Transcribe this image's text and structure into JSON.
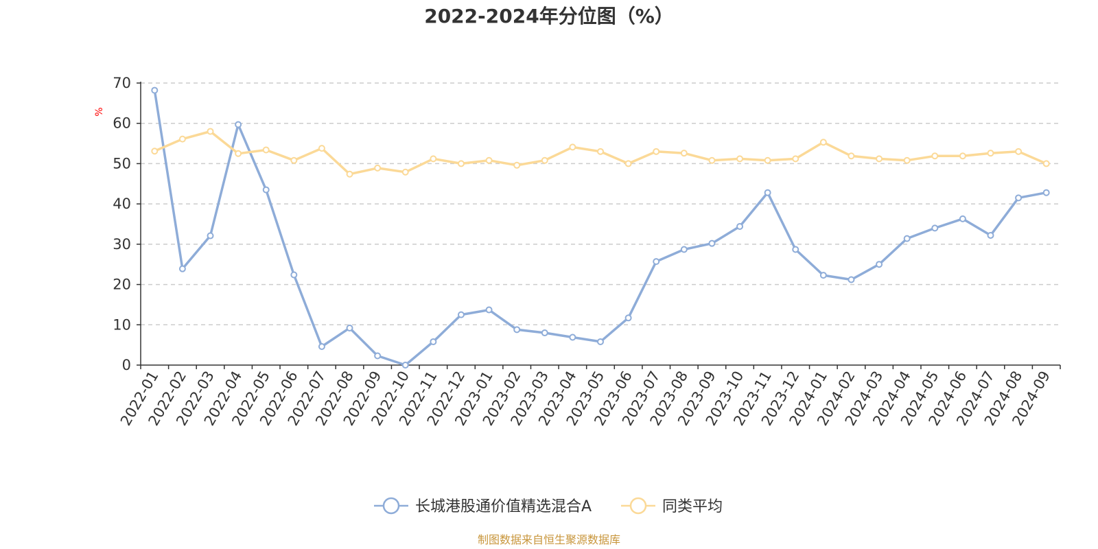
{
  "chart_data": {
    "type": "line",
    "title": "2022-2024年分位图（%）",
    "ylabel": "%",
    "xlabel": "",
    "ylim": [
      0,
      70
    ],
    "yticks": [
      0,
      10,
      20,
      30,
      40,
      50,
      60,
      70
    ],
    "grid": true,
    "legend_position": "bottom",
    "categories": [
      "2022-01",
      "2022-02",
      "2022-03",
      "2022-04",
      "2022-05",
      "2022-06",
      "2022-07",
      "2022-08",
      "2022-09",
      "2022-10",
      "2022-11",
      "2022-12",
      "2023-01",
      "2023-02",
      "2023-03",
      "2023-04",
      "2023-05",
      "2023-06",
      "2023-07",
      "2023-08",
      "2023-09",
      "2023-10",
      "2023-11",
      "2023-12",
      "2024-01",
      "2024-02",
      "2024-03",
      "2024-04",
      "2024-05",
      "2024-06",
      "2024-07",
      "2024-08",
      "2024-09"
    ],
    "series": [
      {
        "name": "长城港股通价值精选混合A",
        "color": "#8eacd8",
        "values": [
          68.2,
          23.9,
          32.1,
          59.7,
          43.5,
          22.4,
          4.6,
          9.2,
          2.3,
          0.0,
          5.8,
          12.5,
          13.7,
          8.8,
          8.0,
          6.9,
          5.8,
          11.7,
          25.7,
          28.7,
          30.2,
          34.4,
          42.8,
          28.7,
          22.3,
          21.2,
          25.0,
          31.4,
          34.0,
          36.3,
          32.2,
          41.5,
          42.8
        ]
      },
      {
        "name": "同类平均",
        "color": "#fbd997",
        "values": [
          53.1,
          56.1,
          58.0,
          52.5,
          53.4,
          50.8,
          53.8,
          47.4,
          48.9,
          47.9,
          51.2,
          50.0,
          50.8,
          49.6,
          50.8,
          54.1,
          53.0,
          50.0,
          53.0,
          52.6,
          50.8,
          51.2,
          50.8,
          51.2,
          55.3,
          51.9,
          51.2,
          50.8,
          51.9,
          51.9,
          52.6,
          53.0,
          50.0
        ]
      }
    ]
  },
  "footer": {
    "source": "制图数据来自恒生聚源数据库"
  }
}
